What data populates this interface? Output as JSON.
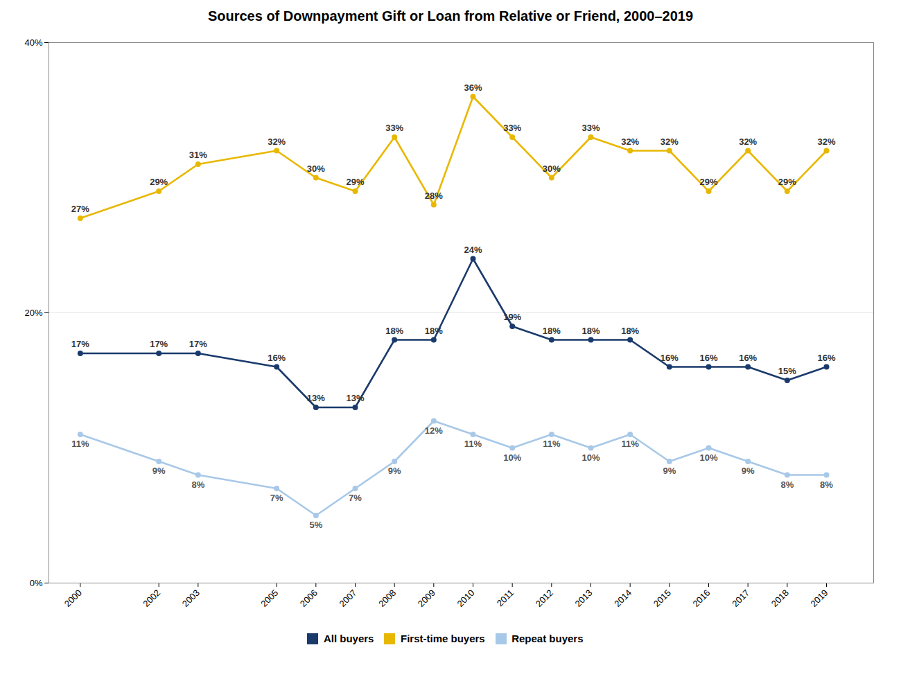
{
  "chart_data": {
    "type": "line",
    "title": "Sources of Downpayment Gift or Loan from Relative or Friend, 2000–2019",
    "x": [
      2000,
      2002,
      2003,
      2005,
      2006,
      2007,
      2008,
      2009,
      2010,
      2011,
      2012,
      2013,
      2014,
      2015,
      2016,
      2017,
      2018,
      2019
    ],
    "series": [
      {
        "name": "All buyers",
        "color": "#1a3a6b",
        "marker": "circle",
        "values": [
          17,
          17,
          17,
          16,
          13,
          13,
          18,
          18,
          24,
          19,
          18,
          18,
          18,
          16,
          16,
          16,
          15,
          16
        ],
        "value_labels": [
          "17%",
          "17%",
          "17%",
          "16%",
          "13%",
          "13%",
          "18%",
          "18%",
          "24%",
          "19%",
          "18%",
          "18%",
          "18%",
          "16%",
          "16%",
          "16%",
          "15%",
          "16%"
        ]
      },
      {
        "name": "First-time buyers",
        "color": "#e8b800",
        "marker": "circle",
        "values": [
          27,
          29,
          31,
          32,
          30,
          29,
          33,
          28,
          36,
          33,
          30,
          33,
          32,
          32,
          29,
          32,
          29,
          32
        ],
        "value_labels": [
          "27%",
          "29%",
          "31%",
          "32%",
          "30%",
          "29%",
          "33%",
          "28%",
          "36%",
          "33%",
          "30%",
          "33%",
          "32%",
          "32%",
          "29%",
          "32%",
          "29%",
          "32%"
        ]
      },
      {
        "name": "Repeat buyers",
        "color": "#a8c8e8",
        "marker": "circle",
        "values": [
          11,
          9,
          8,
          7,
          5,
          7,
          9,
          12,
          11,
          10,
          11,
          10,
          11,
          9,
          10,
          9,
          8,
          8
        ],
        "value_labels": [
          "11%",
          "9%",
          "8%",
          "7%",
          "5%",
          "7%",
          "9%",
          "12%",
          "11%",
          "10%",
          "11%",
          "10%",
          "11%",
          "9%",
          "10%",
          "9%",
          "8%",
          "8%"
        ]
      }
    ],
    "xlim": [
      1999.2,
      2020.2
    ],
    "xticks": [
      2000,
      2002,
      2003,
      2005,
      2006,
      2007,
      2008,
      2009,
      2010,
      2011,
      2012,
      2013,
      2014,
      2015,
      2016,
      2017,
      2018,
      2019
    ],
    "ylim": [
      0,
      40
    ],
    "yticks": [
      {
        "value": 0,
        "label": "0%"
      },
      {
        "value": 20,
        "label": "20%"
      },
      {
        "value": 40,
        "label": "40%"
      }
    ],
    "grid": true,
    "legend": "bottom",
    "data_labels": true
  }
}
